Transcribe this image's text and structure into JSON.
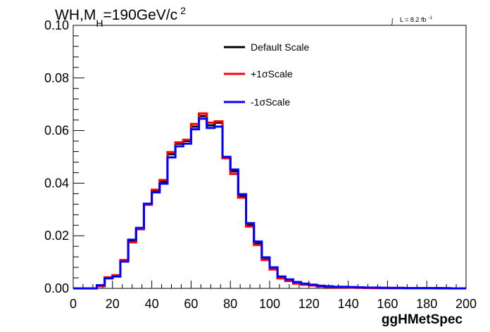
{
  "chart_data": {
    "type": "line",
    "step": true,
    "title": {
      "prefix": "WH,M",
      "subscript": "H",
      "suffix": "=190GeV/c",
      "superscript": "2"
    },
    "lumi": {
      "symbol": "∫",
      "text": "L = 8.2 fb",
      "superscript": "-1"
    },
    "xlabel": "ggHMetSpec",
    "ylabel": "",
    "xlim": [
      0,
      200
    ],
    "ylim": [
      0,
      0.1
    ],
    "x_ticks": [
      "0",
      "20",
      "40",
      "60",
      "80",
      "100",
      "120",
      "140",
      "160",
      "180",
      "200"
    ],
    "y_ticks": [
      "0.00",
      "0.02",
      "0.04",
      "0.06",
      "0.08",
      "0.10"
    ],
    "grid": false,
    "legend_position": "top-center",
    "bin_edges": [
      0,
      4,
      8,
      12,
      16,
      20,
      24,
      28,
      32,
      36,
      40,
      44,
      48,
      52,
      56,
      60,
      64,
      68,
      72,
      76,
      80,
      84,
      88,
      92,
      96,
      100,
      104,
      108,
      112,
      116,
      120,
      124,
      128,
      132,
      136,
      140,
      144,
      148,
      152,
      156,
      160,
      164,
      168,
      172,
      176,
      180,
      184,
      188,
      192,
      196,
      200
    ],
    "series": [
      {
        "name": "Default Scale",
        "color": "#000000",
        "values": [
          0,
          0,
          0,
          0.001,
          0.004,
          0.0048,
          0.0105,
          0.018,
          0.0225,
          0.032,
          0.037,
          0.0405,
          0.051,
          0.055,
          0.056,
          0.0615,
          0.0655,
          0.062,
          0.063,
          0.0495,
          0.0445,
          0.035,
          0.024,
          0.017,
          0.011,
          0.0075,
          0.004,
          0.003,
          0.002,
          0.0015,
          0.0012,
          0.0008,
          0.0006,
          0.0004,
          0.0005,
          0.0004,
          0.0003,
          0.0002,
          0.0002,
          0.0002,
          0.0001,
          0.0001,
          0.0001,
          0.0001,
          0.0001,
          0.0001,
          0.0001,
          0,
          0,
          0
        ]
      },
      {
        "name": "+1σScale",
        "color": "#ff0000",
        "values": [
          0,
          0,
          0,
          0.0008,
          0.0042,
          0.005,
          0.0108,
          0.0175,
          0.0225,
          0.0318,
          0.0375,
          0.0412,
          0.0518,
          0.0555,
          0.0565,
          0.0625,
          0.0665,
          0.063,
          0.0635,
          0.0495,
          0.0435,
          0.0345,
          0.0235,
          0.0165,
          0.0108,
          0.0072,
          0.0038,
          0.0028,
          0.0018,
          0.0014,
          0.0011,
          0.0007,
          0.0005,
          0.0004,
          0.0004,
          0.0003,
          0.0002,
          0.0002,
          0.0001,
          0.0001,
          0.0001,
          0.0001,
          0.0001,
          0.0001,
          0.0001,
          0.0001,
          0,
          0,
          0,
          0
        ]
      },
      {
        "name": "-1σScale",
        "color": "#0000ff",
        "values": [
          0,
          0,
          0,
          0.0012,
          0.0038,
          0.0045,
          0.0102,
          0.0185,
          0.023,
          0.0322,
          0.0365,
          0.0398,
          0.0498,
          0.054,
          0.055,
          0.0605,
          0.0645,
          0.061,
          0.0615,
          0.05,
          0.0452,
          0.0358,
          0.0248,
          0.0178,
          0.0118,
          0.008,
          0.0045,
          0.0034,
          0.0024,
          0.0018,
          0.0014,
          0.001,
          0.0008,
          0.0006,
          0.0006,
          0.0005,
          0.0004,
          0.0003,
          0.0003,
          0.0002,
          0.0002,
          0.0002,
          0.0001,
          0.0001,
          0.0001,
          0.0001,
          0.0001,
          0.0001,
          0,
          0
        ]
      }
    ]
  }
}
